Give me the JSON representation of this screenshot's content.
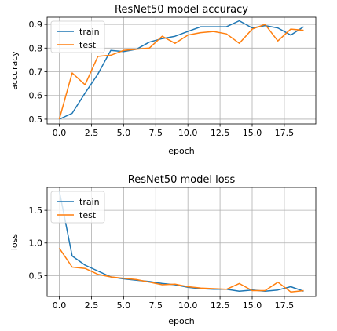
{
  "chart_data": [
    {
      "type": "line",
      "title": "ResNet50 model accuracy",
      "xlabel": "epoch",
      "ylabel": "accuracy",
      "xlim": [
        -0.95,
        19.95
      ],
      "ylim": [
        0.48,
        0.93
      ],
      "xticks": [
        0,
        2.5,
        5,
        7.5,
        10,
        12.5,
        15,
        17.5
      ],
      "xtick_labels": [
        "0.0",
        "2.5",
        "5.0",
        "7.5",
        "10.0",
        "12.5",
        "15.0",
        "17.5"
      ],
      "yticks": [
        0.5,
        0.6,
        0.7,
        0.8,
        0.9
      ],
      "ytick_labels": [
        "0.5",
        "0.6",
        "0.7",
        "0.8",
        "0.9"
      ],
      "grid": true,
      "legend": "upper left",
      "x": [
        0,
        1,
        2,
        3,
        4,
        5,
        6,
        7,
        8,
        9,
        10,
        11,
        12,
        13,
        14,
        15,
        16,
        17,
        18,
        19
      ],
      "series": [
        {
          "name": "train",
          "color": "#1f77b4",
          "values": [
            0.5,
            0.525,
            0.61,
            0.69,
            0.79,
            0.785,
            0.795,
            0.825,
            0.84,
            0.85,
            0.87,
            0.89,
            0.89,
            0.89,
            0.915,
            0.885,
            0.895,
            0.885,
            0.855,
            0.89
          ]
        },
        {
          "name": "test",
          "color": "#ff7f0e",
          "values": [
            0.5,
            0.695,
            0.645,
            0.765,
            0.77,
            0.79,
            0.795,
            0.8,
            0.85,
            0.82,
            0.855,
            0.865,
            0.87,
            0.86,
            0.82,
            0.88,
            0.9,
            0.83,
            0.88,
            0.875
          ]
        }
      ]
    },
    {
      "type": "line",
      "title": "ResNet50 model loss",
      "xlabel": "epoch",
      "ylabel": "loss",
      "xlim": [
        -0.95,
        19.95
      ],
      "ylim": [
        0.18,
        1.85
      ],
      "xticks": [
        0,
        2.5,
        5,
        7.5,
        10,
        12.5,
        15,
        17.5
      ],
      "xtick_labels": [
        "0.0",
        "2.5",
        "5.0",
        "7.5",
        "10.0",
        "12.5",
        "15.0",
        "17.5"
      ],
      "yticks": [
        0.5,
        1.0,
        1.5
      ],
      "ytick_labels": [
        "0.5",
        "1.0",
        "1.5"
      ],
      "grid": true,
      "legend": "upper left",
      "x": [
        0,
        1,
        2,
        3,
        4,
        5,
        6,
        7,
        8,
        9,
        10,
        11,
        12,
        13,
        14,
        15,
        16,
        17,
        18,
        19
      ],
      "series": [
        {
          "name": "train",
          "color": "#1f77b4",
          "values": [
            1.8,
            0.8,
            0.66,
            0.57,
            0.48,
            0.45,
            0.43,
            0.41,
            0.38,
            0.36,
            0.32,
            0.3,
            0.29,
            0.29,
            0.26,
            0.28,
            0.26,
            0.28,
            0.33,
            0.26
          ]
        },
        {
          "name": "test",
          "color": "#ff7f0e",
          "values": [
            0.92,
            0.63,
            0.61,
            0.52,
            0.48,
            0.46,
            0.44,
            0.4,
            0.36,
            0.37,
            0.33,
            0.31,
            0.3,
            0.29,
            0.38,
            0.27,
            0.27,
            0.4,
            0.25,
            0.27
          ]
        }
      ]
    }
  ]
}
